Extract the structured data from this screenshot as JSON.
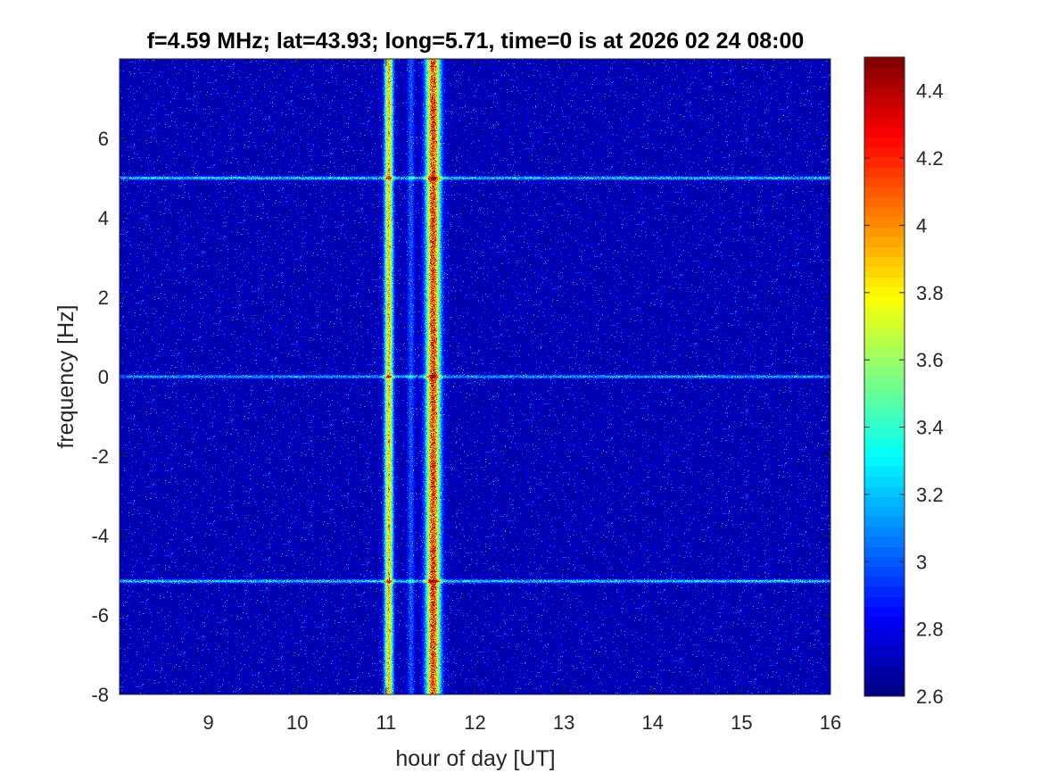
{
  "chart_data": {
    "type": "heatmap",
    "title": "f=4.59 MHz;  lat=43.93; long=5.71, time=0 is at 2026 02 24 08:00",
    "xlabel": "hour of day [UT]",
    "ylabel": "frequency [Hz]",
    "xlim": [
      8,
      16
    ],
    "ylim": [
      -8,
      8
    ],
    "x_ticks": [
      9,
      10,
      11,
      12,
      13,
      14,
      15,
      16
    ],
    "x_tick_labels": [
      "9",
      "10",
      "11",
      "12",
      "13",
      "14",
      "15",
      "16"
    ],
    "y_ticks": [
      -8,
      -6,
      -4,
      -2,
      0,
      2,
      4,
      6
    ],
    "y_tick_labels": [
      "-8",
      "-6",
      "-4",
      "-2",
      "0",
      "2",
      "4",
      "6"
    ],
    "colormap": "jet",
    "colorbar": {
      "clim": [
        2.6,
        4.5
      ],
      "ticks": [
        2.6,
        2.8,
        3,
        3.2,
        3.4,
        3.6,
        3.8,
        4,
        4.2,
        4.4
      ],
      "tick_labels": [
        "2.6",
        "2.8",
        "3",
        "3.2",
        "3.4",
        "3.6",
        "3.8",
        "4",
        "4.2",
        "4.4"
      ]
    },
    "background_level": 2.7,
    "grid": false,
    "features": [
      {
        "kind": "horizontal_line",
        "y": 5.0,
        "x_range": [
          8.0,
          16.0
        ],
        "level": 3.3
      },
      {
        "kind": "horizontal_line",
        "y": 0.0,
        "x_range": [
          8.0,
          16.0
        ],
        "level": 3.2
      },
      {
        "kind": "horizontal_line",
        "y": -5.15,
        "x_range": [
          8.0,
          16.0
        ],
        "level": 3.3
      },
      {
        "kind": "vertical_band",
        "x_center": 11.03,
        "width": 0.12,
        "level": 3.9
      },
      {
        "kind": "vertical_band",
        "x_center": 11.28,
        "width": 0.1,
        "level": 3.0
      },
      {
        "kind": "vertical_band",
        "x_center": 11.53,
        "width": 0.2,
        "level": 4.2
      }
    ]
  }
}
